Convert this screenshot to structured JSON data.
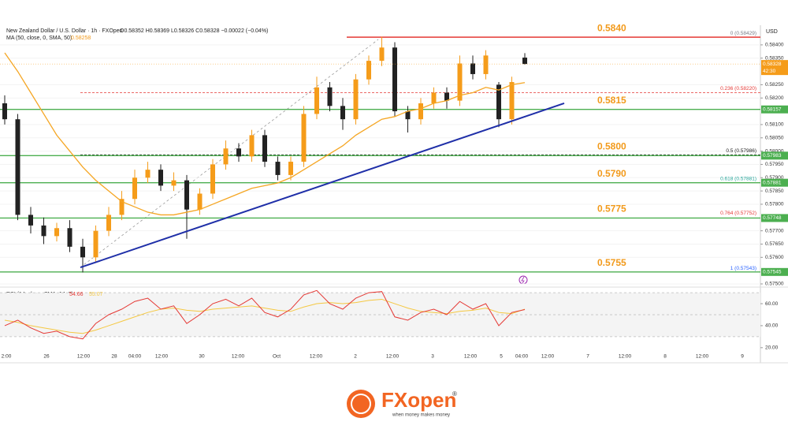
{
  "header": {
    "symbol": "New Zealand Dollar / U.S. Dollar · 1h · FXOpen",
    "ohlc": "O0.58352 H0.58369 L0.58326 C0.58328 −0.00022 (−0.04%)",
    "currency": "USD"
  },
  "logo": {
    "name": "FXopen",
    "mark": "®",
    "tagline": "when money makes money"
  },
  "chart_data": [
    {
      "type": "candlestick",
      "x_labels": [
        "2:00",
        "26",
        "12:00",
        "28",
        "04:00",
        "12:00",
        "30",
        "12:00",
        "Oct",
        "12:00",
        "2",
        "12:00",
        "3",
        "12:00",
        "5",
        "04:00",
        "12:00",
        "7",
        "12:00",
        "8",
        "12:00",
        "9"
      ],
      "open": [
        0.5818,
        0.5812,
        0.5776,
        0.5772,
        0.5768,
        0.5771,
        0.5764,
        0.576,
        0.577,
        0.5776,
        0.5782,
        0.579,
        0.5793,
        0.5787,
        0.5789,
        0.5778,
        0.5784,
        0.5795,
        0.5801,
        0.5798,
        0.5806,
        0.5796,
        0.5791,
        0.5796,
        0.5814,
        0.5824,
        0.5817,
        0.5812,
        0.5827,
        0.5834,
        0.5839,
        0.5815,
        0.5812,
        0.5818,
        0.5822,
        0.5819,
        0.5833,
        0.5829,
        0.5825,
        0.5812,
        0.58352
      ],
      "high": [
        0.5821,
        0.5814,
        0.5779,
        0.5775,
        0.5773,
        0.5774,
        0.5767,
        0.5772,
        0.5779,
        0.5785,
        0.5793,
        0.5796,
        0.5795,
        0.5792,
        0.5791,
        0.5786,
        0.5797,
        0.5804,
        0.5803,
        0.5808,
        0.5808,
        0.5798,
        0.5798,
        0.5817,
        0.5828,
        0.5826,
        0.582,
        0.5829,
        0.5836,
        0.5843,
        0.5841,
        0.5817,
        0.582,
        0.5824,
        0.5824,
        0.5836,
        0.5836,
        0.5838,
        0.5826,
        0.5828,
        0.58369
      ],
      "low": [
        0.581,
        0.5774,
        0.5769,
        0.5765,
        0.5766,
        0.5762,
        0.57543,
        0.5758,
        0.5768,
        0.5774,
        0.578,
        0.5788,
        0.5785,
        0.5785,
        0.5767,
        0.5776,
        0.5782,
        0.5793,
        0.5796,
        0.5796,
        0.5794,
        0.5789,
        0.5789,
        0.5794,
        0.5812,
        0.5815,
        0.5808,
        0.581,
        0.5825,
        0.5832,
        0.5813,
        0.5807,
        0.581,
        0.5816,
        0.5816,
        0.5817,
        0.5827,
        0.5827,
        0.5809,
        0.581,
        0.58326
      ],
      "close": [
        0.5812,
        0.5776,
        0.5772,
        0.5768,
        0.5771,
        0.5764,
        0.576,
        0.577,
        0.5776,
        0.5782,
        0.579,
        0.5793,
        0.5787,
        0.5789,
        0.5778,
        0.5784,
        0.5795,
        0.5801,
        0.5798,
        0.5806,
        0.5796,
        0.5791,
        0.5796,
        0.5814,
        0.5824,
        0.5817,
        0.5812,
        0.5827,
        0.5834,
        0.5839,
        0.5815,
        0.5812,
        0.5818,
        0.5822,
        0.5819,
        0.5833,
        0.5829,
        0.5836,
        0.5812,
        0.5826,
        0.58328
      ],
      "up_color": "#f59c1a",
      "down_color": "#222222",
      "ylim": [
        0.57494,
        0.58465
      ],
      "yticks": [
        {
          "value": 0.584,
          "label": "0.58400"
        },
        {
          "value": 0.5835,
          "label": "0.58350"
        },
        {
          "value": 0.5825,
          "label": "0.58250"
        },
        {
          "value": 0.582,
          "label": "0.58200"
        },
        {
          "value": 0.581,
          "label": "0.58100"
        },
        {
          "value": 0.5805,
          "label": "0.58050"
        },
        {
          "value": 0.58,
          "label": "0.58000"
        },
        {
          "value": 0.5795,
          "label": "0.57950"
        },
        {
          "value": 0.579,
          "label": "0.57900"
        },
        {
          "value": 0.5785,
          "label": "0.57850"
        },
        {
          "value": 0.578,
          "label": "0.57800"
        },
        {
          "value": 0.577,
          "label": "0.57700"
        },
        {
          "value": 0.5765,
          "label": "0.57650"
        },
        {
          "value": 0.576,
          "label": "0.57600"
        },
        {
          "value": 0.575,
          "label": "0.57500"
        }
      ],
      "ma": {
        "name": "MA (50, close, 0, SMA, 50)",
        "last": 0.58258,
        "color": "#f5a623",
        "values": [
          0.5837,
          0.583,
          0.5822,
          0.5814,
          0.5806,
          0.58,
          0.5794,
          0.5789,
          0.5785,
          0.5781,
          0.5779,
          0.5777,
          0.5776,
          0.5776,
          0.5777,
          0.5778,
          0.578,
          0.5782,
          0.5784,
          0.5786,
          0.5787,
          0.5788,
          0.579,
          0.5793,
          0.5796,
          0.5799,
          0.5802,
          0.5806,
          0.5809,
          0.5812,
          0.5813,
          0.5815,
          0.5816,
          0.5818,
          0.5819,
          0.5821,
          0.5822,
          0.5824,
          0.5823,
          0.5825,
          0.58258
        ]
      },
      "last_price": {
        "value": 0.58328,
        "countdown": "42:30",
        "color": "#f59c1a"
      },
      "levels": [
        {
          "label": "0.5840",
          "line": 0.58429,
          "color": "#e53935",
          "boxed": false
        },
        {
          "label": "0.5815",
          "line": 0.58157,
          "color": "#4caf50",
          "boxed": true
        },
        {
          "label": "0.5800",
          "line": 0.57983,
          "color": "#4caf50",
          "boxed": true
        },
        {
          "label": "0.5790",
          "line": 0.57881,
          "color": "#4caf50",
          "boxed": true
        },
        {
          "label": "0.5775",
          "line": 0.57748,
          "color": "#4caf50",
          "boxed": true
        },
        {
          "label": "0.5755",
          "line": 0.57545,
          "color": "#4caf50",
          "boxed": true
        }
      ],
      "fib": [
        {
          "label": "0 (0.58429)",
          "value": 0.58429,
          "color": "#787b86",
          "dashed": false
        },
        {
          "label": "0.236 (0.58220)",
          "value": 0.5822,
          "color": "#e53935",
          "dashed": true
        },
        {
          "label": "0.5 (0.57986)",
          "value": 0.57986,
          "color": "#222222",
          "dashed": true
        },
        {
          "label": "0.618 (0.57881)",
          "value": 0.57881,
          "color": "#26a69a",
          "dashed": false
        },
        {
          "label": "0.764 (0.57752)",
          "value": 0.57752,
          "color": "#e53935",
          "dashed": false
        },
        {
          "label": "1 (0.57543)",
          "value": 0.57543,
          "color": "#2962ff",
          "dashed": false
        }
      ],
      "trendline": {
        "color": "#1f2fa8",
        "values": [
          0.57562,
          0.5818
        ]
      }
    },
    {
      "type": "line",
      "title": "RSI (14, close, SMA, 14, 2)",
      "ylim": [
        17,
        71.5
      ],
      "yticks": [
        {
          "value": 60,
          "label": "60.00"
        },
        {
          "value": 40,
          "label": "40.00"
        },
        {
          "value": 20,
          "label": "20.00"
        }
      ],
      "bands": [
        70,
        50,
        30
      ],
      "series": [
        {
          "last": 54.66,
          "color": "#e53935",
          "values": [
            40,
            45,
            38,
            33,
            35,
            30,
            28,
            42,
            50,
            55,
            62,
            65,
            55,
            58,
            42,
            50,
            60,
            64,
            58,
            65,
            52,
            48,
            55,
            68,
            72,
            60,
            55,
            65,
            70,
            71,
            48,
            45,
            52,
            55,
            50,
            62,
            55,
            60,
            40,
            52,
            54.66
          ]
        },
        {
          "last": 55.07,
          "color": "#f5c842",
          "values": [
            45,
            43,
            40,
            38,
            36,
            34,
            33,
            36,
            40,
            44,
            48,
            52,
            55,
            56,
            54,
            53,
            55,
            56,
            57,
            58,
            56,
            54,
            53,
            57,
            60,
            61,
            60,
            61,
            63,
            64,
            60,
            56,
            53,
            52,
            51,
            53,
            54,
            56,
            52,
            51,
            55.07
          ]
        }
      ]
    }
  ]
}
